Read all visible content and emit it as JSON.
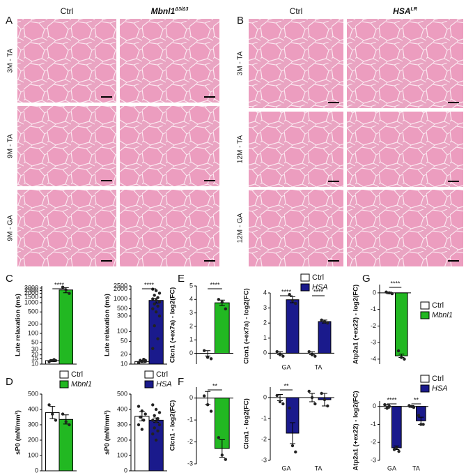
{
  "panels": [
    "A",
    "B",
    "C",
    "D",
    "E",
    "F",
    "G"
  ],
  "histology": [
    {
      "columns": [
        {
          "name": "Ctrl"
        },
        {
          "name": "Mbnl1",
          "sup": "Δ3/Δ3"
        }
      ],
      "rows": [
        "3M - TA",
        "9M - TA",
        "9M - GA"
      ]
    },
    {
      "columns": [
        {
          "name": "Ctrl"
        },
        {
          "name": "HSA",
          "sup": "LR"
        }
      ],
      "rows": [
        "3M - TA",
        "12M - TA",
        "12M - GA"
      ]
    }
  ],
  "chart_data": [
    {
      "type": "bar",
      "ylabel": "Late relaxation (ms)",
      "log": true,
      "ylim": [
        10,
        3500
      ],
      "yticks": [
        10,
        15,
        20,
        30,
        50,
        100,
        200,
        500,
        1000,
        1500,
        2000,
        2500,
        3000
      ],
      "series": [
        {
          "name": "Ctrl",
          "color": "#ffffff",
          "values": [
            13
          ],
          "errors": [
            1
          ],
          "points": [
            [
              12,
              13,
              13,
              13,
              14
            ]
          ]
        },
        {
          "name": "Mbnl1",
          "color": "#22b822",
          "values": [
            2600
          ],
          "errors": [
            500
          ],
          "points": [
            [
              3200,
              2600,
              2000
            ]
          ]
        }
      ],
      "annotations": [
        "****"
      ],
      "legend": false
    },
    {
      "type": "bar",
      "ylabel": "Late relaxation (ms)",
      "log": true,
      "ylim": [
        10,
        2500
      ],
      "yticks": [
        10,
        20,
        50,
        100,
        300,
        500,
        1000,
        2000,
        2500
      ],
      "series": [
        {
          "name": "Ctrl",
          "color": "#ffffff",
          "values": [
            12
          ],
          "errors": [
            1
          ],
          "points": [
            [
              11,
              12,
              12,
              13,
              14,
              11,
              12,
              13
            ]
          ]
        },
        {
          "name": "HSA",
          "color": "#1a1a8c",
          "values": [
            900
          ],
          "errors": [
            150
          ],
          "points": [
            [
              2000,
              1800,
              1500,
              1300,
              1100,
              1000,
              900,
              800,
              700,
              600,
              500,
              400,
              300,
              150,
              60,
              30
            ]
          ]
        }
      ],
      "annotations": [
        "****"
      ],
      "legend": false
    },
    {
      "type": "bar",
      "ylabel": "sP0 (mN/mm²)",
      "log": false,
      "ylim": [
        0,
        500
      ],
      "yticks": [
        0,
        100,
        200,
        300,
        400,
        500
      ],
      "series": [
        {
          "name": "Ctrl",
          "color": "#ffffff",
          "values": [
            380
          ],
          "errors": [
            40
          ],
          "points": [
            [
              430,
              370,
              330
            ]
          ]
        },
        {
          "name": "Mbnl1",
          "color": "#22b822",
          "values": [
            335
          ],
          "errors": [
            30
          ],
          "points": [
            [
              370,
              320,
              300
            ]
          ]
        }
      ],
      "annotations": [],
      "legend": true
    },
    {
      "type": "bar",
      "ylabel": "sP0 (mN/mm²)",
      "log": false,
      "ylim": [
        0,
        500
      ],
      "yticks": [
        0,
        100,
        200,
        300,
        400,
        500
      ],
      "series": [
        {
          "name": "Ctrl",
          "color": "#ffffff",
          "values": [
            355
          ],
          "errors": [
            30
          ],
          "points": [
            [
              420,
              390,
              370,
              350,
              330,
              300,
              270
            ]
          ]
        },
        {
          "name": "HSA",
          "color": "#1a1a8c",
          "values": [
            330
          ],
          "errors": [
            15
          ],
          "points": [
            [
              430,
              400,
              380,
              360,
              340,
              330,
              320,
              300,
              280,
              260,
              240,
              200
            ]
          ]
        }
      ],
      "annotations": [],
      "legend": true
    },
    {
      "type": "bar",
      "ylabel": "Clcn1 (+ex7a) - log2(FC)",
      "log": false,
      "ylim": [
        -0.8,
        5
      ],
      "yticks": [
        0,
        1,
        2,
        3,
        4,
        5
      ],
      "series": [
        {
          "name": "Ctrl",
          "color": "#ffffff",
          "values": [
            0
          ],
          "errors": [
            0.2
          ],
          "points": [
            [
              0.2,
              -0.3,
              -0.4
            ]
          ]
        },
        {
          "name": "Mbnl1",
          "color": "#22b822",
          "values": [
            3.75
          ],
          "errors": [
            0.2
          ],
          "points": [
            [
              4.0,
              3.8,
              3.3
            ]
          ]
        }
      ],
      "annotations": [
        "****"
      ],
      "legend": false
    },
    {
      "type": "bar",
      "ylabel": "Clcn1 (+ex7a) - log2(FC)",
      "log": false,
      "ylim": [
        -0.4,
        4
      ],
      "yticks": [
        0,
        1,
        2,
        3,
        4
      ],
      "categories": [
        "GA",
        "TA"
      ],
      "series": [
        {
          "name": "Ctrl",
          "color": "#ffffff",
          "values": [
            0,
            0
          ],
          "errors": [
            0.1,
            0.1
          ],
          "points": [
            [
              0.1,
              -0.1,
              -0.2
            ],
            [
              0.1,
              -0.1,
              -0.2
            ]
          ]
        },
        {
          "name": "HSA",
          "color": "#1a1a8c",
          "values": [
            3.55,
            2.1
          ],
          "errors": [
            0.2,
            0.1
          ],
          "points": [
            [
              3.9,
              3.5,
              3.3
            ],
            [
              2.2,
              2.1,
              2.0
            ]
          ]
        }
      ],
      "annotations": [
        "****",
        "****"
      ],
      "legend": true
    },
    {
      "type": "bar",
      "ylabel": "Clcn1 - log2(FC)",
      "log": false,
      "ylim": [
        -3,
        0.5
      ],
      "yticks": [
        -3,
        -2,
        -1,
        0
      ],
      "series": [
        {
          "name": "Ctrl",
          "color": "#ffffff",
          "values": [
            0
          ],
          "errors": [
            0.3
          ],
          "points": [
            [
              0.1,
              -0.3,
              -0.6
            ]
          ]
        },
        {
          "name": "Mbnl1",
          "color": "#22b822",
          "values": [
            -2.3
          ],
          "errors": [
            0.4
          ],
          "points": [
            [
              -1.8,
              -2.6,
              -2.8
            ]
          ]
        }
      ],
      "annotations": [
        "**"
      ],
      "legend": false
    },
    {
      "type": "bar",
      "ylabel": "Clcn1 - log2(FC)",
      "log": false,
      "ylim": [
        -3,
        0.5
      ],
      "yticks": [
        -3,
        -2,
        -1,
        0
      ],
      "categories": [
        "GA",
        "TA"
      ],
      "series": [
        {
          "name": "Ctrl",
          "color": "#ffffff",
          "values": [
            0,
            0
          ],
          "errors": [
            0.15,
            0.2
          ],
          "points": [
            [
              0.1,
              -0.2,
              -0.3
            ],
            [
              0.3,
              0,
              -0.3
            ]
          ]
        },
        {
          "name": "HSA",
          "color": "#1a1a8c",
          "values": [
            -1.7,
            -0.1
          ],
          "errors": [
            0.5,
            0.3
          ],
          "points": [
            [
              -0.5,
              -2.3,
              -2.6
            ],
            [
              0.2,
              -0.1,
              -0.4
            ]
          ]
        }
      ],
      "annotations": [
        "**"
      ],
      "legend": false
    },
    {
      "type": "bar",
      "ylabel": "Atp2a1 (+ex22) - log2(FC)",
      "log": false,
      "ylim": [
        -4.3,
        0.5
      ],
      "yticks": [
        -4,
        -3,
        -2,
        -1,
        0
      ],
      "series": [
        {
          "name": "Ctrl",
          "color": "#ffffff",
          "values": [
            0
          ],
          "errors": [
            0.05
          ],
          "points": [
            [
              0.05,
              0,
              -0.05
            ]
          ]
        },
        {
          "name": "Mbnl1",
          "color": "#22b822",
          "values": [
            -3.8
          ],
          "errors": [
            0.1
          ],
          "points": [
            [
              -3.5,
              -3.9,
              -4.0
            ]
          ]
        }
      ],
      "annotations": [
        "****"
      ],
      "legend": true
    },
    {
      "type": "bar",
      "ylabel": "Atp2a1 (+ex22) - log2(FC)",
      "log": false,
      "ylim": [
        -3,
        0.3
      ],
      "yticks": [
        -3,
        -2,
        -1,
        0
      ],
      "categories": [
        "GA",
        "TA"
      ],
      "series": [
        {
          "name": "Ctrl",
          "color": "#ffffff",
          "values": [
            0,
            0
          ],
          "errors": [
            0.1,
            0.05
          ],
          "points": [
            [
              0.1,
              -0.1,
              0
            ],
            [
              0.05,
              0,
              -0.05
            ]
          ]
        },
        {
          "name": "HSA",
          "color": "#1a1a8c",
          "values": [
            -2.3,
            -0.8
          ],
          "errors": [
            0.1,
            0.2
          ],
          "points": [
            [
              -2.4,
              -2.3,
              -2.5
            ],
            [
              -0.5,
              -1.0,
              -1.0
            ]
          ]
        }
      ],
      "annotations": [
        "****",
        "**"
      ],
      "legend": true
    }
  ]
}
